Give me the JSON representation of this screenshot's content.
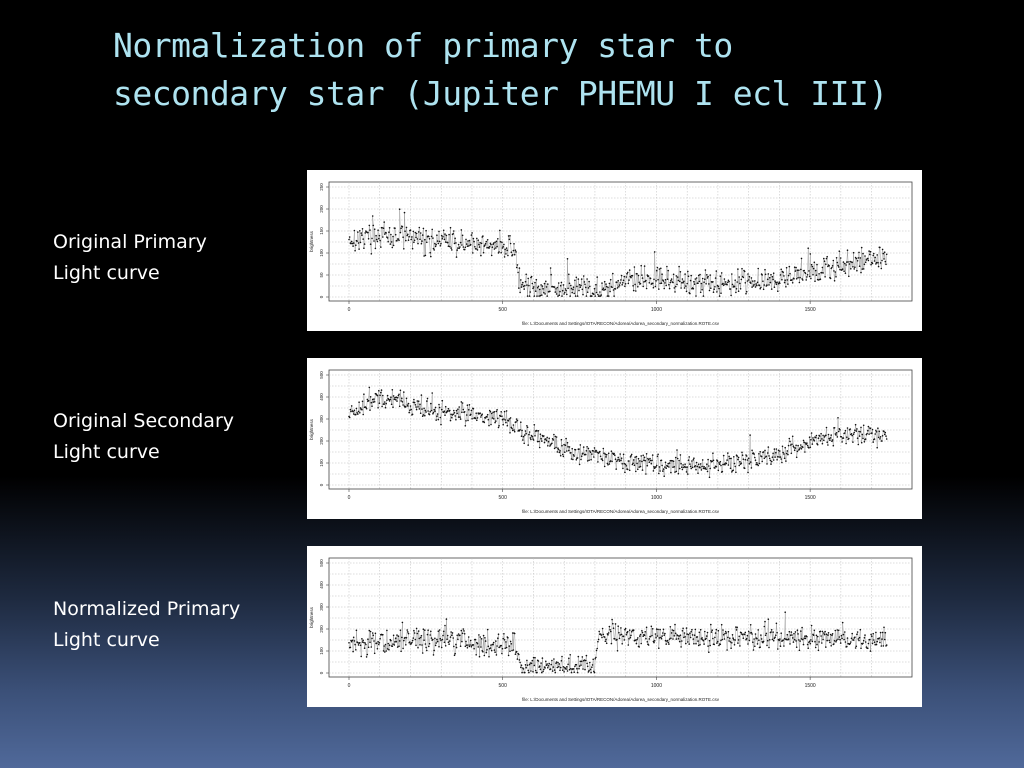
{
  "slide": {
    "title_lines": [
      "Normalization of primary star to",
      "secondary star (Jupiter PHEMU I ecl III)"
    ]
  },
  "panels": [
    {
      "label_lines": [
        "Original Primary",
        "Light curve"
      ]
    },
    {
      "label_lines": [
        "Original Secondary",
        "Light curve"
      ]
    },
    {
      "label_lines": [
        "Normalized Primary",
        "Light curve"
      ]
    }
  ],
  "chart_data": [
    {
      "type": "scatter",
      "series_style": "points joined by thin line",
      "ylabel": "brightness",
      "xlabel": "file: L:/Documents and Settings/IOTA/RECON/Adorea/Adorea_secondary_normalization.ROTE.csv",
      "xlim": [
        0,
        1750
      ],
      "ylim": [
        0,
        250
      ],
      "x_ticks": [
        0,
        500,
        1000,
        1500
      ],
      "y_ticks": [
        0,
        50,
        100,
        150,
        200,
        250
      ],
      "grid": true,
      "trend": {
        "x": [
          0,
          100,
          200,
          300,
          400,
          500,
          540,
          560,
          700,
          820,
          900,
          1000,
          1100,
          1200,
          1300,
          1400,
          1500,
          1600,
          1700,
          1750
        ],
        "y": [
          130,
          140,
          135,
          125,
          120,
          115,
          105,
          20,
          18,
          15,
          40,
          38,
          35,
          32,
          35,
          42,
          55,
          70,
          85,
          90
        ]
      },
      "noise": 22
    },
    {
      "type": "scatter",
      "series_style": "points joined by thin line",
      "ylabel": "brightness",
      "xlabel": "file: L:/Documents and Settings/IOTA/RECON/Adorea/Adorea_secondary_normalization.ROTE.csv",
      "xlim": [
        0,
        1750
      ],
      "ylim": [
        0,
        500
      ],
      "x_ticks": [
        0,
        500,
        1000,
        1500
      ],
      "y_ticks": [
        0,
        100,
        200,
        300,
        400,
        500
      ],
      "grid": true,
      "trend": {
        "x": [
          0,
          50,
          100,
          200,
          300,
          400,
          500,
          550,
          600,
          700,
          800,
          900,
          1000,
          1100,
          1200,
          1300,
          1400,
          1500,
          1600,
          1700,
          1750
        ],
        "y": [
          330,
          360,
          390,
          370,
          330,
          320,
          300,
          260,
          220,
          170,
          140,
          100,
          95,
          95,
          95,
          110,
          140,
          200,
          240,
          220,
          230
        ]
      },
      "noise": 35
    },
    {
      "type": "scatter",
      "series_style": "points joined by thin line",
      "ylabel": "brightness",
      "xlabel": "file: L:/Documents and Settings/IOTA/RECON/Adorea/Adorea_secondary_normalization.ROTE.csv",
      "xlim": [
        0,
        1750
      ],
      "ylim": [
        0,
        500
      ],
      "x_ticks": [
        0,
        500,
        1000,
        1500
      ],
      "y_ticks": [
        0,
        100,
        200,
        300,
        400,
        500
      ],
      "grid": true,
      "trend": {
        "x": [
          0,
          100,
          300,
          500,
          540,
          560,
          700,
          800,
          810,
          1000,
          1200,
          1400,
          1600,
          1750
        ],
        "y": [
          130,
          140,
          150,
          130,
          140,
          30,
          25,
          30,
          170,
          170,
          160,
          165,
          150,
          150
        ]
      },
      "noise": 40
    }
  ]
}
